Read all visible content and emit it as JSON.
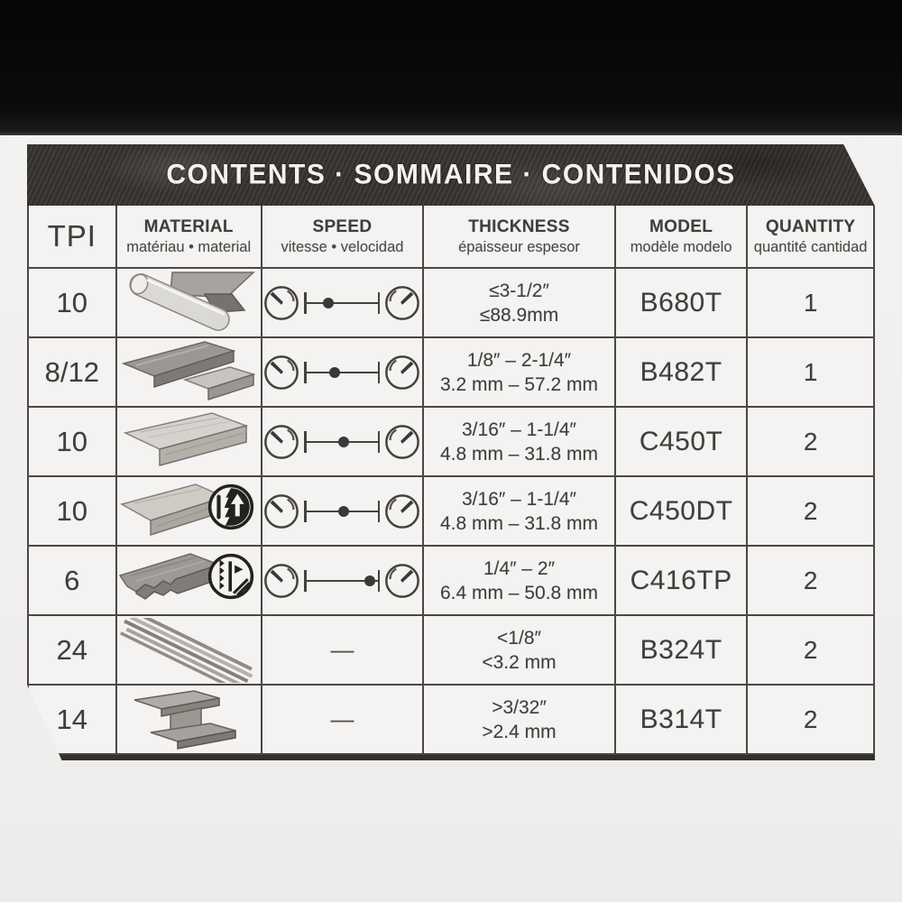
{
  "banner": {
    "title": "CONTENTS · SOMMAIRE · CONTENIDOS"
  },
  "headers": {
    "tpi": "TPI",
    "material_en": "MATERIAL",
    "material_sub": "matériau • material",
    "speed_en": "SPEED",
    "speed_sub": "vitesse • velocidad",
    "thickness_en": "THICKNESS",
    "thickness_sub": "épaisseur espesor",
    "model_en": "MODEL",
    "model_sub": "modèle modelo",
    "quantity_en": "QUANTITY",
    "quantity_sub": "quantité cantidad"
  },
  "rows": [
    {
      "tpi": "10",
      "material_icon": "metal-tube-and-angle-stock",
      "speed_dot_pct": 32,
      "thickness_in": "≤3-1/2″",
      "thickness_mm": "≤88.9mm",
      "model": "B680T",
      "quantity": "1"
    },
    {
      "tpi": "8/12",
      "material_icon": "metal-flat-bars",
      "speed_dot_pct": 40,
      "thickness_in": "1/8″ – 2-1/4″",
      "thickness_mm": "3.2 mm – 57.2 mm",
      "model": "B482T",
      "quantity": "1"
    },
    {
      "tpi": "10",
      "material_icon": "wood-board",
      "speed_dot_pct": 52,
      "thickness_in": "3/16″ – 1-1/4″",
      "thickness_mm": "4.8 mm – 31.8 mm",
      "model": "C450T",
      "quantity": "2"
    },
    {
      "tpi": "10",
      "material_icon": "wood-board",
      "badge_icon": "tree-up-arrow-badge",
      "speed_dot_pct": 52,
      "thickness_in": "3/16″ – 1-1/4″",
      "thickness_mm": "4.8 mm – 31.8 mm",
      "model": "C450DT",
      "quantity": "2"
    },
    {
      "tpi": "6",
      "material_icon": "rough-lumber",
      "badge_icon": "saw-blade-wood-badge",
      "speed_dot_pct": 86,
      "thickness_in": "1/4″ – 2″",
      "thickness_mm": "6.4 mm – 50.8 mm",
      "model": "C416TP",
      "quantity": "2"
    },
    {
      "tpi": "24",
      "material_icon": "thin-metal-strips",
      "speed_dash": "—",
      "thickness_in": "<1/8″",
      "thickness_mm": "<3.2 mm",
      "model": "B324T",
      "quantity": "2"
    },
    {
      "tpi": "14",
      "material_icon": "steel-i-beam",
      "speed_dash": "—",
      "thickness_in": ">3/32″",
      "thickness_mm": ">2.4 mm",
      "model": "B314T",
      "quantity": "2"
    }
  ],
  "colors": {
    "banner_bg": "#373431",
    "paper": "#f4f3f1",
    "ink": "#403e3c",
    "grid_line": "#4a4745",
    "top_backdrop": "#0b0b0b"
  }
}
